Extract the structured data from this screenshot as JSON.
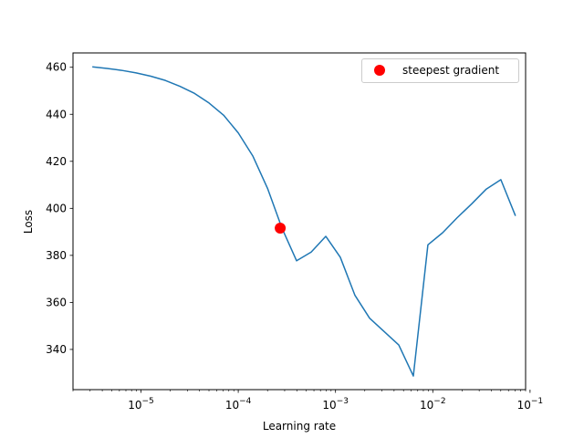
{
  "chart_data": {
    "type": "line",
    "xlabel": "Learning rate",
    "ylabel": "Loss",
    "xscale": "log",
    "xlim": [
      2e-06,
      0.09
    ],
    "ylim": [
      322.9,
      466.1
    ],
    "grid": false,
    "legend_location": "top-right",
    "x_ticks": [
      {
        "value": 1e-05,
        "base": "10",
        "exp": "−5"
      },
      {
        "value": 0.0001,
        "base": "10",
        "exp": "−4"
      },
      {
        "value": 0.001,
        "base": "10",
        "exp": "−3"
      },
      {
        "value": 0.01,
        "base": "10",
        "exp": "−2"
      },
      {
        "value": 0.1,
        "base": "10",
        "exp": "−1"
      }
    ],
    "y_ticks": [
      340,
      360,
      380,
      400,
      420,
      440,
      460
    ],
    "y_tick_labels": [
      "340",
      "360",
      "380",
      "400",
      "420",
      "440",
      "460"
    ],
    "series": [
      {
        "color": "#1f77b4",
        "x": [
          3.16e-06,
          4.47e-06,
          6.31e-06,
          8.91e-06,
          1.26e-05,
          1.78e-05,
          2.51e-05,
          3.55e-05,
          5.01e-05,
          7.08e-05,
          0.0001,
          0.000141,
          0.0002,
          0.000282,
          0.000398,
          0.000562,
          0.000794,
          0.00112,
          0.00158,
          0.00224,
          0.00316,
          0.00447,
          0.00631,
          0.00891,
          0.0126,
          0.0178,
          0.0251,
          0.0355,
          0.0501,
          0.0708
        ],
        "y": [
          460.2,
          459.5,
          458.7,
          457.6,
          456.2,
          454.4,
          451.9,
          448.9,
          444.8,
          439.6,
          432.1,
          422.3,
          408.5,
          391.5,
          377.7,
          381.4,
          388.1,
          379.2,
          363.1,
          353.3,
          347.6,
          341.9,
          328.7,
          384.5,
          389.6,
          396.0,
          401.9,
          408.2,
          412.2,
          396.8
        ]
      }
    ],
    "markers": [
      {
        "name": "steepest gradient",
        "color": "#ff0000",
        "x": 0.00027,
        "y": 391.6
      }
    ]
  }
}
